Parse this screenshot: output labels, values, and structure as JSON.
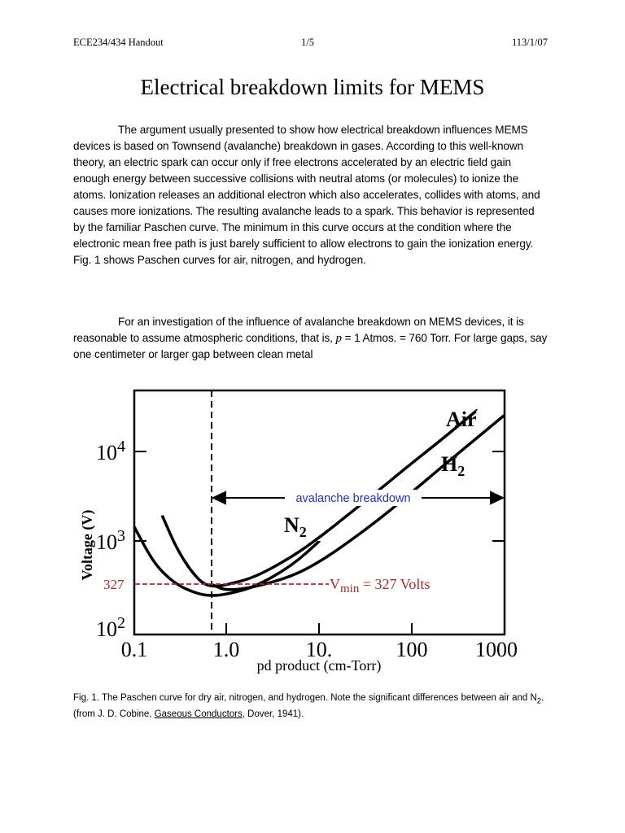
{
  "header": {
    "left": "ECE234/434 Handout",
    "center": "1/5",
    "right": "113/1/07"
  },
  "title": "Electrical breakdown limits for MEMS",
  "paragraph1": "The argument usually presented to show how electrical breakdown influences MEMS devices is based on Townsend (avalanche) breakdown in gases. According to this well-known theory, an electric spark can occur only if free electrons accelerated by an electric field gain enough energy between successive collisions with neutral atoms (or molecules) to ionize the atoms.  Ionization releases an additional electron which also accelerates, collides with atoms, and causes more ionizations.  The resulting avalanche leads to a spark.  This behavior is represented by the familiar Paschen curve.  The minimum in this curve occurs at the condition where the electronic mean free path is just barely sufficient to allow electrons to gain the ionization energy.  Fig. 1 shows Paschen curves for air, nitrogen, and hydrogen.",
  "paragraph2": {
    "part1": "For an investigation of the influence of avalanche breakdown on MEMS devices, it is reasonable to assume atmospheric conditions, that is, ",
    "var": "p",
    "part2": " = 1 Atmos. = 760 Torr.  For large gaps, say one centimeter or larger gap between clean metal"
  },
  "figure": {
    "y_tick_labels": {
      "t2": "2",
      "t3": "3",
      "t4": "4",
      "base": "10"
    },
    "x_tick_labels": [
      "0.1",
      "1.0",
      "10.",
      "100",
      "1000"
    ],
    "ylabel": "Voltage (V)",
    "xlabel": "pd product (cm-Torr)",
    "label_air": "Air",
    "label_h2_main": "H",
    "label_h2_sub": "2",
    "label_n2_main": "N",
    "label_n2_sub": "2",
    "avalanche_label": "avalanche breakdown",
    "vmin_y_label": "327",
    "vmin_v": "V",
    "vmin_sub": "min",
    "vmin_rest": " = 327 Volts",
    "colors": {
      "annotation_red": "#a52a2a",
      "avalanche_blue": "#2233aa"
    }
  },
  "chart_data": {
    "type": "line",
    "title": "",
    "xlabel": "pd product (cm-Torr)",
    "ylabel": "Voltage (V)",
    "xscale": "log",
    "yscale": "log",
    "xlim": [
      0.1,
      1000
    ],
    "ylim": [
      100,
      50000
    ],
    "x_ticks": [
      "0.1",
      "1.0",
      "10.",
      "100",
      "1000"
    ],
    "series": [
      {
        "name": "Air",
        "x": [
          0.2,
          0.3,
          0.5,
          0.7,
          1.0,
          2,
          5,
          10,
          20,
          50,
          100,
          200,
          500
        ],
        "y": [
          2000,
          780,
          380,
          330,
          350,
          420,
          700,
          1150,
          2000,
          4200,
          7500,
          13000,
          28000
        ]
      },
      {
        "name": "N2",
        "x": [
          0.1,
          0.15,
          0.2,
          0.3,
          0.5,
          0.7,
          1.0,
          2,
          5,
          10
        ],
        "y": [
          1500,
          700,
          480,
          340,
          275,
          265,
          275,
          330,
          560,
          1050
        ]
      },
      {
        "name": "H2",
        "x": [
          0.7,
          1.0,
          2,
          5,
          10,
          20,
          50,
          100,
          200,
          500,
          1000
        ],
        "y": [
          350,
          300,
          330,
          430,
          620,
          1000,
          2000,
          3600,
          6500,
          14000,
          25000
        ]
      }
    ],
    "annotations": [
      {
        "text": "avalanche breakdown",
        "x_from": 0.7,
        "x_to": 1000
      },
      {
        "text": "Vmin = 327 Volts",
        "y": 327
      }
    ]
  },
  "caption": {
    "pre": "Fig. 1.  The Paschen curve for dry air, nitrogen, and hydrogen.  Note the significant differences between air and N",
    "sub": "2",
    "mid": ".  (from J. D. Cobine, ",
    "book": "Gaseous Conductors",
    "post": ", Dover, 1941)."
  }
}
